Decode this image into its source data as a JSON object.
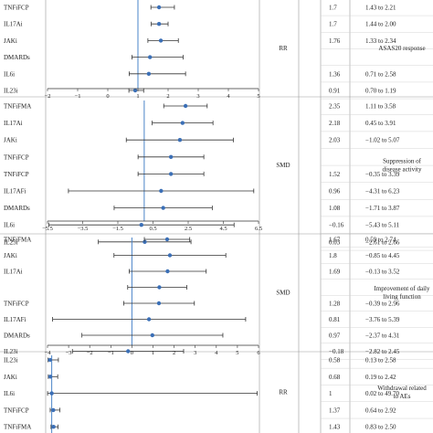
{
  "colors": {
    "line": "#333333",
    "point": "#3b6fb6",
    "ref": "#4a84c8",
    "divider": "#999999"
  },
  "chart_data": [
    {
      "type": "forest",
      "measure": "RR",
      "outcome": "ASAS20 response",
      "ref_line": 1,
      "xlim": [
        -2,
        5
      ],
      "xticks": [
        "-2",
        "-1",
        "0",
        "1",
        "2",
        "3",
        "4",
        "5"
      ],
      "rows": [
        {
          "label": "TNFiFCP",
          "est": 1.7,
          "lo": 1.43,
          "hi": 2.21,
          "est_text": "1.7",
          "ci_text": "1.43 to 2.21"
        },
        {
          "label": "IL17Ai",
          "est": 1.7,
          "lo": 1.44,
          "hi": 2.0,
          "est_text": "1.7",
          "ci_text": "1.44 to 2.00"
        },
        {
          "label": "JAKi",
          "est": 1.76,
          "lo": 1.33,
          "hi": 2.34,
          "est_text": "1.76",
          "ci_text": "1.33 to 2.34"
        },
        {
          "label": "DMARDs",
          "est": 1.4,
          "lo": 0.8,
          "hi": 2.5,
          "est_text": "",
          "ci_text": ""
        },
        {
          "label": "IL6i",
          "est": 1.36,
          "lo": 0.71,
          "hi": 2.58,
          "est_text": "1.36",
          "ci_text": "0.71 to 2.58"
        },
        {
          "label": "IL23i",
          "est": 0.91,
          "lo": 0.7,
          "hi": 1.19,
          "est_text": "0.91",
          "ci_text": "0.70 to 1.19"
        }
      ]
    },
    {
      "type": "forest",
      "measure": "SMD",
      "outcome": "Suppression of disease activity",
      "ref_line": 0,
      "xlim": [
        -5.5,
        6.5
      ],
      "xticks": [
        "-5.5",
        "-3.5",
        "-1.5",
        "0.5",
        "2.5",
        "4.5",
        "6.5"
      ],
      "rows": [
        {
          "label": "TNFiFMA",
          "est": 2.35,
          "lo": 1.11,
          "hi": 3.58,
          "est_text": "2.35",
          "ci_text": "1.11 to 3.58"
        },
        {
          "label": "IL17Ai",
          "est": 2.18,
          "lo": 0.45,
          "hi": 3.91,
          "est_text": "2.18",
          "ci_text": "0.45 to 3.91"
        },
        {
          "label": "JAKi",
          "est": 2.03,
          "lo": -1.02,
          "hi": 5.07,
          "est_text": "2.03",
          "ci_text": "−1.02 to 5.07"
        },
        {
          "label": "TNFiFCP",
          "est": 1.52,
          "lo": -0.35,
          "hi": 3.39,
          "est_text": "",
          "ci_text": ""
        },
        {
          "label": "TNFiFCP",
          "est": 1.52,
          "lo": -0.35,
          "hi": 3.39,
          "est_text": "1.52",
          "ci_text": "−0.35 to 3.39"
        },
        {
          "label": "IL17AFi",
          "est": 0.96,
          "lo": -4.31,
          "hi": 6.23,
          "est_text": "0.96",
          "ci_text": "−4.31 to 6.23"
        },
        {
          "label": "DMARDs",
          "est": 1.08,
          "lo": -1.71,
          "hi": 3.87,
          "est_text": "1.08",
          "ci_text": "−1.71 to 3.87"
        },
        {
          "label": "IL6i",
          "est": -0.16,
          "lo": -5.43,
          "hi": 5.11,
          "est_text": "−0.16",
          "ci_text": "−5.43 to 5.11"
        },
        {
          "label": "IL23i",
          "est": 0.03,
          "lo": -2.61,
          "hi": 2.66,
          "est_text": "0.03",
          "ci_text": "−2.61 to 2.66"
        }
      ]
    },
    {
      "type": "forest",
      "measure": "SMD",
      "outcome": "Improvement of daily living function",
      "ref_line": 0,
      "xlim": [
        -4,
        6
      ],
      "xticks": [
        "-4",
        "-3",
        "-2",
        "-1",
        "0",
        "1",
        "2",
        "3",
        "4",
        "5",
        "6"
      ],
      "rows": [
        {
          "label": "TNFiFMA",
          "est": 1.67,
          "lo": 0.59,
          "hi": 2.74,
          "est_text": "1.67",
          "ci_text": "0.59 to 2.74"
        },
        {
          "label": "JAKi",
          "est": 1.8,
          "lo": -0.85,
          "hi": 4.45,
          "est_text": "1.8",
          "ci_text": "−0.85 to 4.45"
        },
        {
          "label": "IL17Ai",
          "est": 1.69,
          "lo": -0.13,
          "hi": 3.52,
          "est_text": "1.69",
          "ci_text": "−0.13 to 3.52"
        },
        {
          "label": "",
          "est": 1.3,
          "lo": -0.2,
          "hi": 2.6,
          "est_text": "",
          "ci_text": ""
        },
        {
          "label": "TNFiFCP",
          "est": 1.28,
          "lo": -0.39,
          "hi": 2.96,
          "est_text": "1.28",
          "ci_text": "−0.39 to 2.96"
        },
        {
          "label": "IL17AFi",
          "est": 0.81,
          "lo": -3.76,
          "hi": 5.39,
          "est_text": "0.81",
          "ci_text": "−3.76 to 5.39"
        },
        {
          "label": "DMARDs",
          "est": 0.97,
          "lo": -2.37,
          "hi": 4.31,
          "est_text": "0.97",
          "ci_text": "−2.37 to 4.31"
        },
        {
          "label": "IL23i",
          "est": -0.18,
          "lo": -2.82,
          "hi": 2.45,
          "est_text": "−0.18",
          "ci_text": "−2.82 to 2.45"
        }
      ]
    },
    {
      "type": "forest",
      "measure": "RR",
      "outcome": "Withdrawal related to AEs",
      "ref_line": 1,
      "xlim": [
        0,
        50
      ],
      "xticks": [],
      "rows": [
        {
          "label": "IL23i",
          "est": 0.58,
          "lo": 0.13,
          "hi": 2.58,
          "est_text": "0.58",
          "ci_text": "0.13 to 2.58"
        },
        {
          "label": "JAKi",
          "est": 0.68,
          "lo": 0.19,
          "hi": 2.42,
          "est_text": "0.68",
          "ci_text": "0.19 to 2.42"
        },
        {
          "label": "IL6i",
          "est": 1.0,
          "lo": 0.02,
          "hi": 49.7,
          "est_text": "1",
          "ci_text": "0.02 to 49.70"
        },
        {
          "label": "TNFiFCP",
          "est": 1.37,
          "lo": 0.64,
          "hi": 2.92,
          "est_text": "1.37",
          "ci_text": "0.64 to 2.92"
        },
        {
          "label": "TNFiFMA",
          "est": 1.43,
          "lo": 0.83,
          "hi": 2.5,
          "est_text": "1.43",
          "ci_text": "0.83 to 2.50"
        }
      ]
    }
  ]
}
